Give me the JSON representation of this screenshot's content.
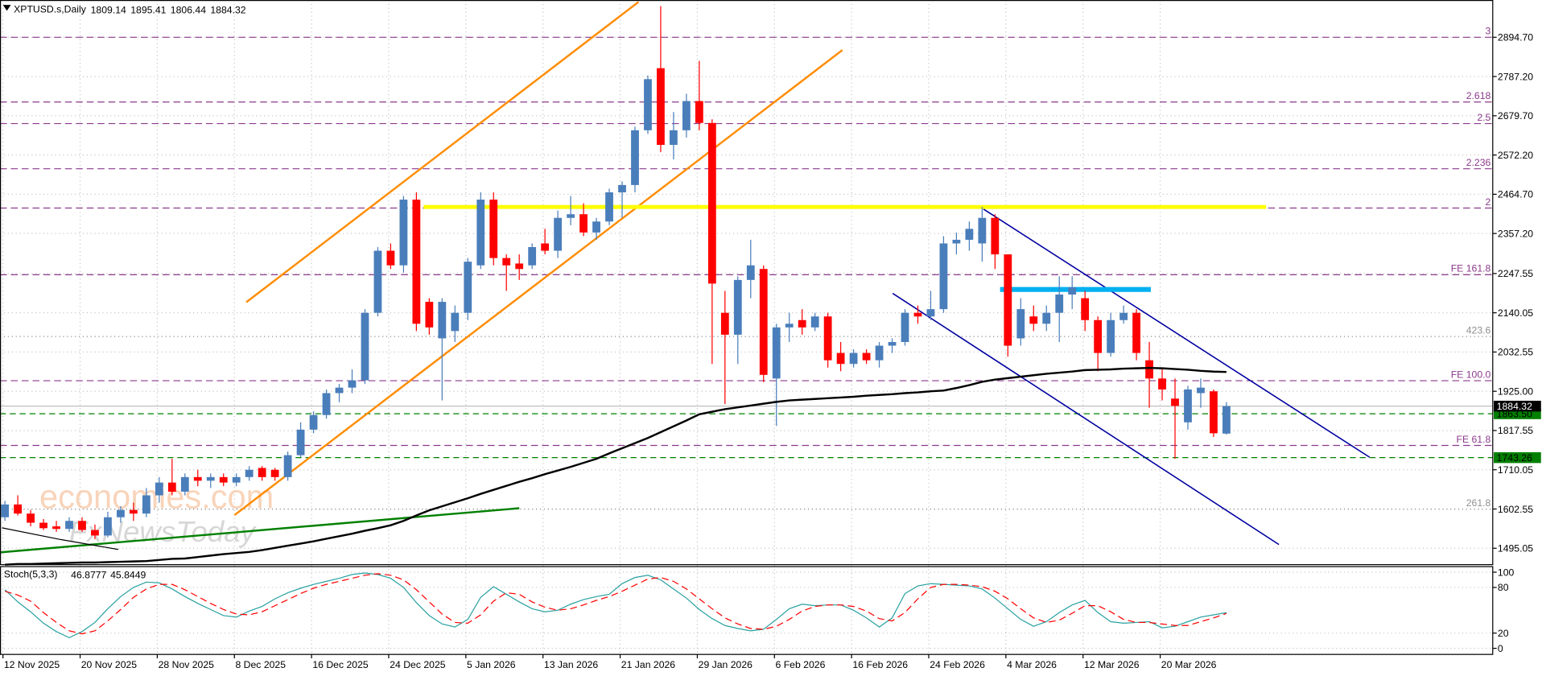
{
  "chart_data": {
    "type": "candlestick",
    "title": "XPTUSD.s,Daily",
    "categories": [
      "12 Nov 2025",
      null,
      null,
      null,
      null,
      null,
      "20 Nov 2025",
      null,
      null,
      null,
      null,
      null,
      "28 Nov 2025",
      null,
      null,
      null,
      null,
      null,
      "8 Dec 2025",
      null,
      null,
      null,
      null,
      null,
      "16 Dec 2025",
      null,
      null,
      null,
      null,
      null,
      "24 Dec 2025",
      null,
      null,
      null,
      null,
      null,
      "5 Jan 2026",
      null,
      null,
      null,
      null,
      null,
      "13 Jan 2026",
      null,
      null,
      null,
      null,
      null,
      "21 Jan 2026",
      null,
      null,
      null,
      null,
      null,
      "29 Jan 2026",
      null,
      null,
      null,
      null,
      null,
      "6 Feb 2026",
      null,
      null,
      null,
      null,
      null,
      "16 Feb 2026",
      null,
      null,
      null,
      null,
      null,
      "24 Feb 2026",
      null,
      null,
      null,
      null,
      null,
      "4 Mar 2026",
      null,
      null,
      null,
      null,
      null,
      "12 Mar 2026",
      null,
      null,
      null,
      null,
      null,
      "20 Mar 2026",
      null,
      null,
      null,
      null,
      null
    ],
    "ohlc": [
      [
        1580,
        1625,
        1570,
        1615
      ],
      [
        1615,
        1640,
        1585,
        1590
      ],
      [
        1590,
        1600,
        1555,
        1565
      ],
      [
        1565,
        1575,
        1545,
        1550
      ],
      [
        1555,
        1570,
        1540,
        1548
      ],
      [
        1548,
        1580,
        1540,
        1570
      ],
      [
        1570,
        1580,
        1540,
        1545
      ],
      [
        1545,
        1560,
        1520,
        1530
      ],
      [
        1530,
        1595,
        1525,
        1580
      ],
      [
        1580,
        1610,
        1565,
        1600
      ],
      [
        1600,
        1620,
        1570,
        1590
      ],
      [
        1590,
        1660,
        1580,
        1640
      ],
      [
        1640,
        1690,
        1620,
        1675
      ],
      [
        1675,
        1740,
        1640,
        1650
      ],
      [
        1650,
        1700,
        1640,
        1690
      ],
      [
        1690,
        1710,
        1665,
        1680
      ],
      [
        1680,
        1700,
        1660,
        1690
      ],
      [
        1690,
        1700,
        1665,
        1675
      ],
      [
        1675,
        1700,
        1665,
        1690
      ],
      [
        1690,
        1720,
        1680,
        1710
      ],
      [
        1715,
        1720,
        1680,
        1690
      ],
      [
        1710,
        1715,
        1680,
        1690
      ],
      [
        1690,
        1760,
        1680,
        1750
      ],
      [
        1750,
        1840,
        1745,
        1820
      ],
      [
        1820,
        1870,
        1810,
        1860
      ],
      [
        1860,
        1930,
        1850,
        1920
      ],
      [
        1920,
        1945,
        1895,
        1935
      ],
      [
        1935,
        1985,
        1920,
        1955
      ],
      [
        1955,
        2150,
        1945,
        2140
      ],
      [
        2140,
        2320,
        2130,
        2310
      ],
      [
        2310,
        2330,
        2260,
        2270
      ],
      [
        2270,
        2460,
        2250,
        2450
      ],
      [
        2450,
        2470,
        2090,
        2110
      ],
      [
        2170,
        2180,
        2080,
        2100
      ],
      [
        2070,
        2180,
        1900,
        2170
      ],
      [
        2090,
        2160,
        2060,
        2140
      ],
      [
        2140,
        2290,
        2120,
        2280
      ],
      [
        2270,
        2470,
        2260,
        2450
      ],
      [
        2450,
        2470,
        2270,
        2290
      ],
      [
        2290,
        2300,
        2200,
        2270
      ],
      [
        2275,
        2300,
        2230,
        2260
      ],
      [
        2270,
        2330,
        2260,
        2320
      ],
      [
        2330,
        2370,
        2300,
        2310
      ],
      [
        2310,
        2420,
        2290,
        2400
      ],
      [
        2400,
        2460,
        2380,
        2410
      ],
      [
        2410,
        2440,
        2350,
        2360
      ],
      [
        2360,
        2400,
        2340,
        2390
      ],
      [
        2390,
        2480,
        2380,
        2470
      ],
      [
        2470,
        2500,
        2400,
        2490
      ],
      [
        2490,
        2650,
        2470,
        2640
      ],
      [
        2640,
        2790,
        2630,
        2780
      ],
      [
        2810,
        2980,
        2580,
        2600
      ],
      [
        2600,
        2690,
        2560,
        2640
      ],
      [
        2640,
        2740,
        2620,
        2720
      ],
      [
        2720,
        2830,
        2640,
        2660
      ],
      [
        2660,
        2670,
        2000,
        2220
      ],
      [
        2140,
        2200,
        1890,
        2080
      ],
      [
        2080,
        2240,
        2000,
        2230
      ],
      [
        2230,
        2340,
        2180,
        2270
      ],
      [
        2260,
        2270,
        1950,
        1970
      ],
      [
        1960,
        2110,
        1830,
        2100
      ],
      [
        2100,
        2140,
        2060,
        2110
      ],
      [
        2120,
        2150,
        2080,
        2100
      ],
      [
        2100,
        2140,
        2090,
        2130
      ],
      [
        2130,
        2140,
        1990,
        2010
      ],
      [
        2030,
        2060,
        1980,
        2000
      ],
      [
        2000,
        2040,
        1990,
        2030
      ],
      [
        2030,
        2040,
        2000,
        2010
      ],
      [
        2010,
        2060,
        1990,
        2050
      ],
      [
        2050,
        2070,
        2030,
        2060
      ],
      [
        2060,
        2150,
        2050,
        2140
      ],
      [
        2140,
        2160,
        2110,
        2130
      ],
      [
        2130,
        2200,
        2120,
        2150
      ],
      [
        2150,
        2350,
        2140,
        2330
      ],
      [
        2330,
        2360,
        2300,
        2340
      ],
      [
        2340,
        2390,
        2310,
        2370
      ],
      [
        2330,
        2430,
        2280,
        2400
      ],
      [
        2400,
        2410,
        2260,
        2300
      ],
      [
        2300,
        2300,
        2020,
        2050
      ],
      [
        2070,
        2180,
        2050,
        2150
      ],
      [
        2130,
        2160,
        2090,
        2110
      ],
      [
        2110,
        2160,
        2090,
        2140
      ],
      [
        2140,
        2240,
        2060,
        2190
      ],
      [
        2190,
        2240,
        2150,
        2210
      ],
      [
        2180,
        2200,
        2090,
        2120
      ],
      [
        2120,
        2130,
        1980,
        2030
      ],
      [
        2030,
        2140,
        2020,
        2120
      ],
      [
        2120,
        2160,
        2110,
        2140
      ],
      [
        2140,
        2150,
        2010,
        2030
      ],
      [
        2010,
        2060,
        1880,
        1960
      ],
      [
        1960,
        1990,
        1900,
        1930
      ],
      [
        1905,
        1960,
        1740,
        1885
      ],
      [
        1840,
        1940,
        1820,
        1930
      ],
      [
        1920,
        1960,
        1880,
        1935
      ],
      [
        1925,
        1930,
        1800,
        1810
      ],
      [
        1809.14,
        1895.41,
        1806.44,
        1884.32
      ]
    ],
    "colors": {
      "up": "#4a7ebb",
      "down": "#ff0000"
    },
    "ylim": [
      1451.5,
      2996.8
    ],
    "yticks": [
      {
        "value": 2894.7,
        "label": "2894.70"
      },
      {
        "value": 2787.2,
        "label": "2787.20"
      },
      {
        "value": 2679.7,
        "label": "2679.70"
      },
      {
        "value": 2572.2,
        "label": "2572.20"
      },
      {
        "value": 2464.7,
        "label": "2464.70"
      },
      {
        "value": 2357.2,
        "label": "2357.20"
      },
      2247.55,
      2140.05,
      2032.55,
      {
        "value": 1925,
        "label": "1925.00"
      },
      1817.55,
      1710.05,
      1602.55,
      1495.05
    ],
    "grid": true,
    "moving_average": {
      "color": "#000000",
      "values": [
        1450,
        1452,
        1452,
        1453,
        1454,
        1455,
        1456,
        1456,
        1457,
        1458,
        1459,
        1460,
        1463,
        1466,
        1467,
        1471,
        1475,
        1479,
        1482,
        1485,
        1490,
        1496,
        1502,
        1508,
        1514,
        1521,
        1528,
        1535,
        1543,
        1550,
        1558,
        1570,
        1585,
        1599,
        1610,
        1621,
        1632,
        1644,
        1655,
        1666,
        1677,
        1687,
        1698,
        1708,
        1718,
        1729,
        1740,
        1755,
        1769,
        1783,
        1797,
        1813,
        1829,
        1845,
        1862,
        1869,
        1876,
        1881,
        1886,
        1891,
        1896,
        1900,
        1902,
        1904,
        1906,
        1908,
        1910,
        1913,
        1915,
        1917,
        1920,
        1922,
        1925,
        1927,
        1934,
        1942,
        1951,
        1957,
        1961,
        1965,
        1969,
        1973,
        1976,
        1979,
        1983,
        1984,
        1985,
        1987,
        1988,
        1989,
        1988,
        1986,
        1984,
        1981,
        1979,
        1978
      ]
    },
    "levels": [
      {
        "name": "3",
        "value": 2894.7,
        "color": "#8b3a8b",
        "dash": "dashed"
      },
      {
        "name": "2.618",
        "value": 2717.3,
        "color": "#8b3a8b",
        "dash": "dashed"
      },
      {
        "name": "2.5",
        "value": 2658.3,
        "color": "#8b3a8b",
        "dash": "dashed"
      },
      {
        "name": "2.236",
        "value": 2534.6,
        "color": "#8b3a8b",
        "dash": "dashed"
      },
      {
        "name": "2",
        "value": 2427,
        "color": "#8b3a8b",
        "dash": "dashed"
      },
      {
        "name": "FE 161.8",
        "value": 2244.3,
        "color": "#8b3a8b",
        "dash": "dashed"
      },
      {
        "name": "423.6",
        "value": 2075,
        "color": "#909090",
        "dash": "dotted"
      },
      {
        "name": "FE 100.0",
        "value": 1954,
        "color": "#8b3a8b",
        "dash": "dashed"
      },
      {
        "name": "FE 61.8",
        "value": 1776.7,
        "color": "#8b3a8b",
        "dash": "dashed"
      },
      {
        "name": "261.8",
        "value": 1602,
        "color": "#909090",
        "dash": "dotted"
      }
    ],
    "price_lines": [
      {
        "value": 1863.5,
        "label": "1863.50",
        "color": "#008000"
      },
      {
        "value": 1743.26,
        "label": "1743.26",
        "color": "#008000"
      }
    ],
    "watermark": [
      "economies.com",
      "FxNewsToday"
    ],
    "stochastic": {
      "title": "Stoch(5,3,3)",
      "ylim": [
        -8,
        108
      ],
      "yticks": [
        100,
        80,
        20,
        0
      ],
      "series": [
        {
          "color": "#2aa1a1",
          "dash": "solid",
          "values": [
            77,
            61,
            48,
            33,
            22,
            14,
            22,
            34,
            52,
            68,
            80,
            87,
            86,
            78,
            68,
            59,
            51,
            43,
            41,
            49,
            55,
            65,
            73,
            79,
            84,
            88,
            92,
            97,
            99,
            97,
            92,
            80,
            60,
            43,
            32,
            28,
            38,
            67,
            81,
            71,
            61,
            52,
            48,
            50,
            58,
            64,
            68,
            71,
            85,
            93,
            96,
            90,
            78,
            66,
            51,
            39,
            30,
            26,
            23,
            25,
            38,
            52,
            58,
            56,
            57,
            57,
            50,
            40,
            28,
            40,
            72,
            82,
            85,
            84,
            83,
            82,
            78,
            66,
            52,
            38,
            29,
            35,
            47,
            57,
            63,
            47,
            35,
            33,
            34,
            35,
            27,
            29,
            35,
            41,
            44,
            46.8777
          ]
        },
        {
          "color": "#ff0000",
          "dash": "dashed",
          "values": [
            75,
            70,
            62,
            47,
            34,
            23,
            19,
            23,
            36,
            51,
            67,
            78,
            84,
            84,
            77,
            68,
            59,
            51,
            45,
            44,
            48,
            56,
            64,
            72,
            79,
            84,
            88,
            92,
            96,
            98,
            96,
            90,
            77,
            61,
            45,
            34,
            33,
            44,
            62,
            73,
            71,
            61,
            54,
            50,
            52,
            57,
            63,
            68,
            75,
            83,
            91,
            93,
            88,
            78,
            65,
            52,
            40,
            32,
            26,
            25,
            29,
            38,
            49,
            55,
            57,
            57,
            55,
            49,
            39,
            36,
            47,
            65,
            80,
            84,
            84,
            83,
            81,
            75,
            65,
            52,
            40,
            34,
            37,
            46,
            56,
            56,
            48,
            38,
            34,
            34,
            32,
            30,
            30,
            35,
            40,
            45.8449
          ]
        }
      ]
    }
  }
}
